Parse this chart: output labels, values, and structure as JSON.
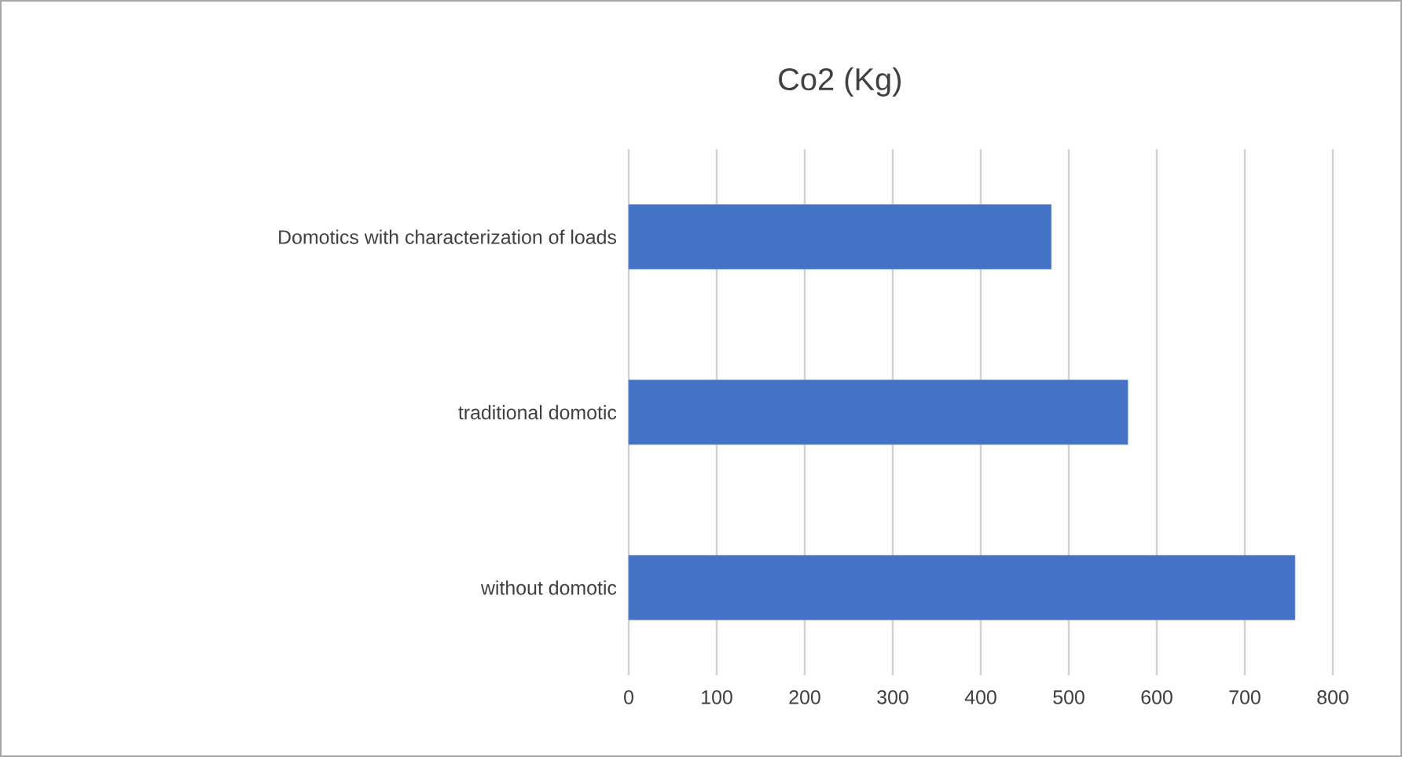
{
  "chart_data": {
    "type": "bar",
    "orientation": "horizontal",
    "title": "Co2 (Kg)",
    "categories": [
      "Domotics with characterization of loads",
      "traditional domotic",
      "without domotic"
    ],
    "values": [
      480,
      567,
      757
    ],
    "color": "#4472c4",
    "xlim": [
      0,
      800
    ],
    "xticks": [
      0,
      100,
      200,
      300,
      400,
      500,
      600,
      700,
      800
    ],
    "grid": "x"
  }
}
